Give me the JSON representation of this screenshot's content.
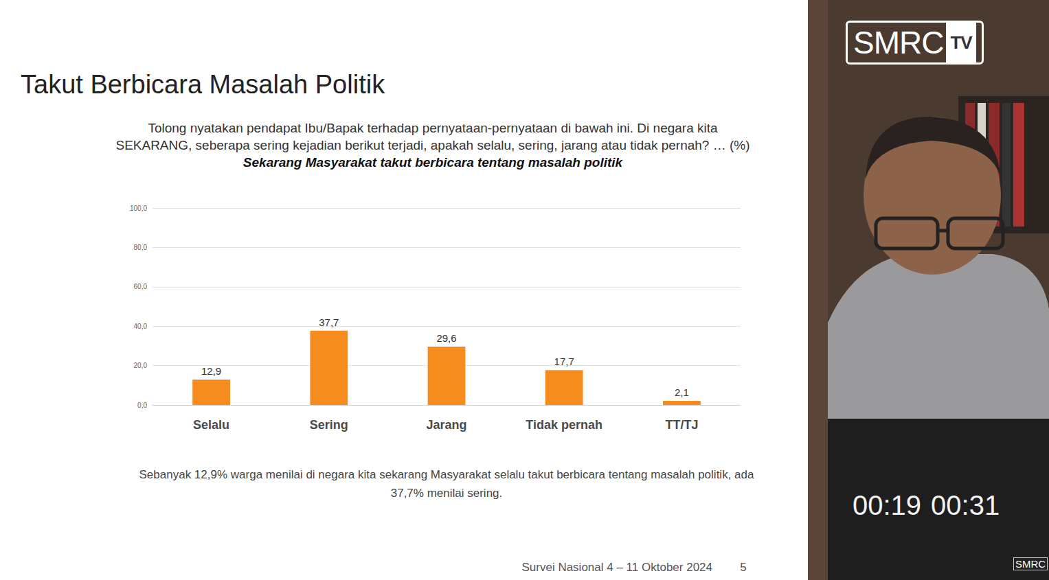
{
  "slide": {
    "title": "Takut Berbicara Masalah Politik",
    "question": "Tolong nyatakan pendapat Ibu/Bapak terhadap pernyataan-pernyataan di bawah ini. Di negara kita SEKARANG, seberapa sering kejadian berikut terjadi, apakah selalu, sering, jarang atau tidak pernah? … (%)",
    "question_emphasis": "Sekarang Masyarakat takut berbicara tentang masalah politik",
    "caption": "Sebanyak 12,9% warga menilai di negara kita sekarang Masyarakat selalu takut berbicara tentang masalah politik, ada 37,7% menilai sering.",
    "footer": "Survei Nasional 4 – 11 Oktober 2024",
    "page": "5"
  },
  "video": {
    "logo": "SMRC",
    "logo_badge": "TV",
    "timestamps": [
      "00:19",
      "00:31"
    ],
    "watermark": "SMRC"
  },
  "chart_data": {
    "type": "bar",
    "categories": [
      "Selalu",
      "Sering",
      "Jarang",
      "Tidak pernah",
      "TT/TJ"
    ],
    "values": [
      12.9,
      37.7,
      29.6,
      17.7,
      2.1
    ],
    "value_labels": [
      "12,9",
      "37,7",
      "29,6",
      "17,7",
      "2,1"
    ],
    "color": "#f78c1e",
    "ylim": [
      0,
      100
    ],
    "yticks": [
      {
        "value": 0,
        "label": "0,0"
      },
      {
        "value": 20,
        "label": "20,0"
      },
      {
        "value": 40,
        "label": "40,0"
      },
      {
        "value": 60,
        "label": "60,0"
      },
      {
        "value": 80,
        "label": "80,0"
      },
      {
        "value": 100,
        "label": "100,0"
      }
    ],
    "grid": true,
    "data_labels": true
  }
}
